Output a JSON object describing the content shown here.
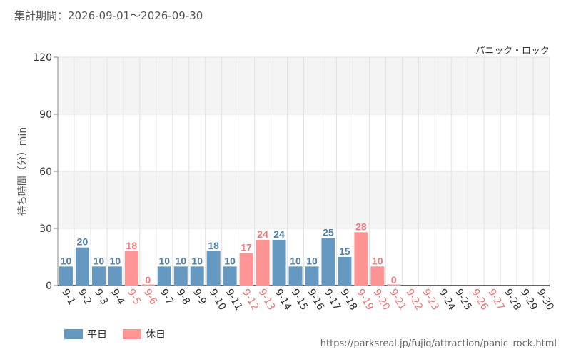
{
  "period_label": "集計期間：2026-09-01～2026-09-30",
  "source_url": "https://parksreal.jp/fujiq/attraction/panic_rock.html",
  "colors": {
    "weekday": "#6699c2",
    "holiday": "#ff9494",
    "weekday_text": "#4e7fae",
    "holiday_text": "#f07a7a",
    "band": "#f4f4f4",
    "grid": "#e3e3e3"
  },
  "legend": [
    {
      "label": "平日",
      "type": "weekday"
    },
    {
      "label": "休日",
      "type": "holiday"
    }
  ],
  "chart_data": {
    "type": "bar",
    "title": "パニック・ロック",
    "ylabel": "待ち時間（分）min",
    "xlabel": "",
    "ylim": [
      0,
      120
    ],
    "yticks": [
      "0",
      "30",
      "60",
      "90",
      "120"
    ],
    "grid": true,
    "categories": [
      "9-1",
      "9-2",
      "9-3",
      "9-4",
      "9-5",
      "9-6",
      "9-7",
      "9-8",
      "9-9",
      "9-10",
      "9-11",
      "9-12",
      "9-13",
      "9-14",
      "9-15",
      "9-16",
      "9-17",
      "9-18",
      "9-19",
      "9-20",
      "9-21",
      "9-22",
      "9-23",
      "9-24",
      "9-25",
      "9-26",
      "9-27",
      "9-28",
      "9-29",
      "9-30"
    ],
    "day_types": [
      "weekday",
      "weekday",
      "weekday",
      "weekday",
      "holiday",
      "holiday",
      "weekday",
      "weekday",
      "weekday",
      "weekday",
      "weekday",
      "holiday",
      "holiday",
      "weekday",
      "weekday",
      "weekday",
      "weekday",
      "weekday",
      "holiday",
      "holiday",
      "holiday",
      "holiday",
      "holiday",
      "weekday",
      "weekday",
      "holiday",
      "holiday",
      "weekday",
      "weekday",
      "weekday"
    ],
    "values": [
      10,
      20,
      10,
      10,
      18,
      0,
      10,
      10,
      10,
      18,
      10,
      17,
      24,
      24,
      10,
      10,
      25,
      15,
      28,
      10,
      0,
      null,
      null,
      null,
      null,
      null,
      null,
      null,
      null,
      null
    ],
    "value_labels": [
      "10",
      "20",
      "10",
      "10",
      "18",
      "0",
      "10",
      "10",
      "10",
      "18",
      "10",
      "17",
      "24",
      "24",
      "10",
      "10",
      "25",
      "15",
      "28",
      "10",
      "0",
      "",
      "",
      "",
      "",
      "",
      "",
      "",
      "",
      ""
    ]
  }
}
